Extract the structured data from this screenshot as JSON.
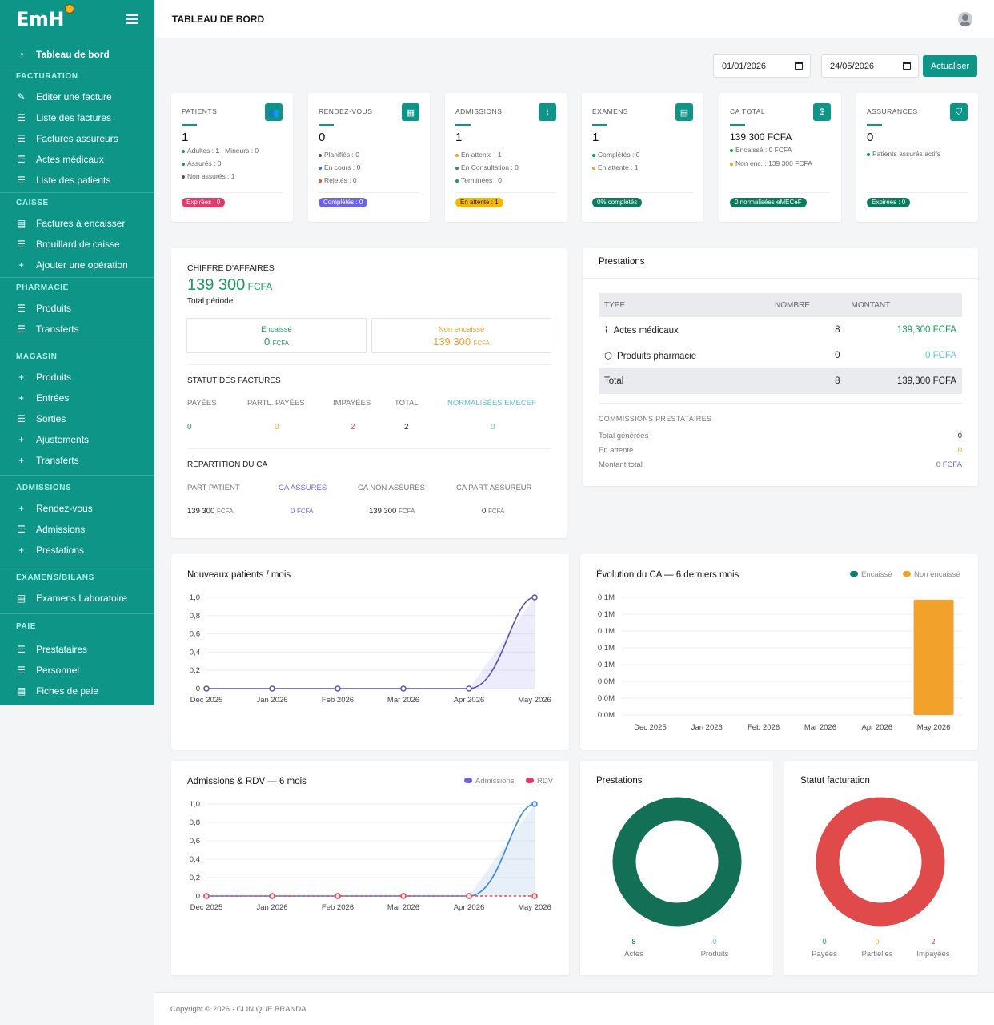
{
  "sidebar": {
    "brand": "EmH",
    "dashboard": "Tableau de bord",
    "sections": {
      "facturation": "FACTURATION",
      "caisse": "CAISSE",
      "pharmacie": "PHARMACIE",
      "magasin": "MAGASIN",
      "admissions": "ADMISSIONS",
      "examens": "EXAMENS/BILANS",
      "paie": "PAIE"
    },
    "items": {
      "editer_facture": "Editer une facture",
      "liste_factures": "Liste des factures",
      "factures_assureurs": "Factures assureurs",
      "actes_medicaux": "Actes médicaux",
      "liste_patients": "Liste des patients",
      "factures_encaisser": "Factures à encaisser",
      "brouillard": "Brouillard de caisse",
      "ajouter_operation": "Ajouter une opération",
      "pharma_produits": "Produits",
      "pharma_transferts": "Transferts",
      "mag_produits": "Produits",
      "mag_entrees": "Entrées",
      "mag_sorties": "Sorties",
      "mag_ajustements": "Ajustements",
      "mag_transferts": "Transferts",
      "rendez_vous": "Rendez-vous",
      "admissions": "Admissions",
      "prestations": "Prestations",
      "examens_labo": "Examens Laboratoire",
      "prestataires": "Prestataires",
      "personnel": "Personnel",
      "fiches_paie": "Fiches de paie"
    }
  },
  "header": {
    "title": "TABLEAU DE BORD"
  },
  "filters": {
    "date_start": "01/01/2026",
    "date_end": "24/05/2026",
    "refresh_label": "Actualiser"
  },
  "stats": {
    "patients": {
      "label": "PATIENTS",
      "value": "1",
      "l1a": "Adultes : ",
      "l1b": "1",
      "l1c": " | Mineurs : 0",
      "l2": "Assurés : 0",
      "l3": "Non assurés : 1",
      "pill": "Expirées : 0"
    },
    "rdv": {
      "label": "RENDEZ-VOUS",
      "value": "0",
      "l1": "Planifiés : 0",
      "l2": "En cours : 0",
      "l3": "Rejetés : 0",
      "pill": "Complétés : 0"
    },
    "admissions": {
      "label": "ADMISSIONS",
      "value": "1",
      "l1": "En attente : 1",
      "l2": "En Consultation : 0",
      "l3": "Terminées : 0",
      "pill": "En attente : 1"
    },
    "examens": {
      "label": "EXAMENS",
      "value": "1",
      "l1": "Complétés : 0",
      "l2": "En attente : 1",
      "pill": "0% complétés"
    },
    "ca_total": {
      "label": "CA TOTAL",
      "value": "139 300 FCFA",
      "l1": "Encaissé : 0 FCFA",
      "l2": "Non enc. : 139 300 FCFA",
      "pill": "0 normalisées eMECeF"
    },
    "assurances": {
      "label": "ASSURANCES",
      "value": "0",
      "l1": "Patients assurés actifs",
      "pill": "Expirées : 0"
    }
  },
  "ca": {
    "title": "CHIFFRE D'AFFAIRES",
    "amount": "139 300",
    "currency": "FCFA",
    "subtitle": "Total période",
    "encaisse_label": "Encaissé",
    "encaisse_value": "0",
    "non_encaisse_label": "Non encaissé",
    "non_encaisse_value": "139 300",
    "statut_title": "STATUT DES FACTURES",
    "statut": {
      "payees_label": "PAYÉES",
      "payees": "0",
      "partl_label": "PARTL. PAYÉES",
      "partl": "0",
      "impayees_label": "IMPAYÉES",
      "impayees": "2",
      "total_label": "TOTAL",
      "total": "2",
      "norm_label": "NORMALISÉES EMECEF",
      "norm": "0"
    },
    "repartition_title": "RÉPARTITION DU CA",
    "repartition": {
      "pp_label": "PART PATIENT",
      "pp": "139 300",
      "ca_ass_label": "CA ASSURÉS",
      "ca_ass": "0",
      "ca_non_label": "CA NON ASSURÉS",
      "ca_non": "139 300",
      "ca_part_label": "CA PART ASSUREUR",
      "ca_part": "0"
    }
  },
  "prestations_table": {
    "title": "Prestations",
    "headers": [
      "TYPE",
      "NOMBRE",
      "MONTANT"
    ],
    "rows": [
      {
        "type": "Actes médicaux",
        "nombre": "8",
        "montant": "139,300 FCFA"
      },
      {
        "type": "Produits pharmacie",
        "nombre": "0",
        "montant": "0 FCFA"
      }
    ],
    "total": {
      "label": "Total",
      "nombre": "8",
      "montant": "139,300 FCFA"
    },
    "commissions_title": "COMMISSIONS PRESTATAIRES",
    "commissions": {
      "generees_label": "Total générées",
      "generees": "0",
      "attente_label": "En attente",
      "attente": "0",
      "montant_label": "Montant total",
      "montant": "0 FCFA"
    }
  },
  "charts": {
    "patients_title": "Nouveaux patients / mois",
    "ca_title": "Évolution du CA — 6 derniers mois",
    "ca_legend": [
      "Encaissé",
      "Non encaissé"
    ],
    "adm_title": "Admissions & RDV — 6 mois",
    "adm_legend": [
      "Admissions",
      "RDV"
    ],
    "prest_title": "Prestations",
    "prest_labels": [
      {
        "v": "8",
        "l": "Actes"
      },
      {
        "v": "0",
        "l": "Produits"
      }
    ],
    "fact_title": "Statut facturation",
    "fact_labels": [
      {
        "v": "0",
        "l": "Payées"
      },
      {
        "v": "0",
        "l": "Partielles"
      },
      {
        "v": "2",
        "l": "Impayées"
      }
    ]
  },
  "chart_data": [
    {
      "type": "area",
      "title": "Nouveaux patients / mois",
      "x": [
        "Dec 2025",
        "Jan 2026",
        "Feb 2026",
        "Mar 2026",
        "Apr 2026",
        "May 2026"
      ],
      "series": [
        {
          "values": [
            0,
            0,
            0,
            0,
            0,
            1
          ]
        }
      ],
      "yticks": [
        "1,0",
        "0,8",
        "0,6",
        "0,4",
        "0,2",
        "0"
      ],
      "ylim": [
        0,
        1
      ]
    },
    {
      "type": "bar",
      "title": "Évolution du CA — 6 derniers mois",
      "categories": [
        "Dec 2025",
        "Jan 2026",
        "Feb 2026",
        "Mar 2026",
        "Apr 2026",
        "May 2026"
      ],
      "series": [
        {
          "name": "Encaissé",
          "values": [
            0,
            0,
            0,
            0,
            0,
            0
          ]
        },
        {
          "name": "Non encaissé",
          "values": [
            0,
            0,
            0,
            0,
            0,
            139300
          ]
        }
      ],
      "yticks": [
        "0.1M",
        "0.1M",
        "0.1M",
        "0.1M",
        "0.1M",
        "0.0M",
        "0.0M",
        "0.0M"
      ]
    },
    {
      "type": "line",
      "title": "Admissions & RDV — 6 mois",
      "x": [
        "Dec 2025",
        "Jan 2026",
        "Feb 2026",
        "Mar 2026",
        "Apr 2026",
        "May 2026"
      ],
      "series": [
        {
          "name": "Admissions",
          "values": [
            0,
            0,
            0,
            0,
            0,
            1
          ]
        },
        {
          "name": "RDV",
          "values": [
            0,
            0,
            0,
            0,
            0,
            0
          ]
        }
      ],
      "yticks": [
        "1,0",
        "0,8",
        "0,6",
        "0,4",
        "0,2",
        "0"
      ],
      "ylim": [
        0,
        1
      ]
    },
    {
      "type": "pie",
      "title": "Prestations",
      "categories": [
        "Actes",
        "Produits"
      ],
      "values": [
        8,
        0
      ]
    },
    {
      "type": "pie",
      "title": "Statut facturation",
      "categories": [
        "Payées",
        "Partielles",
        "Impayées"
      ],
      "values": [
        0,
        0,
        2
      ]
    }
  ],
  "colors": {
    "primary": "#0d9688",
    "orange": "#f2a12a",
    "red": "#e14a4a",
    "purple": "#6c63e6",
    "green": "#1a9a5a",
    "donut_green": "#136f55"
  },
  "footer": {
    "text": "Copyright © 2026 · CLINIQUE BRANDA"
  }
}
